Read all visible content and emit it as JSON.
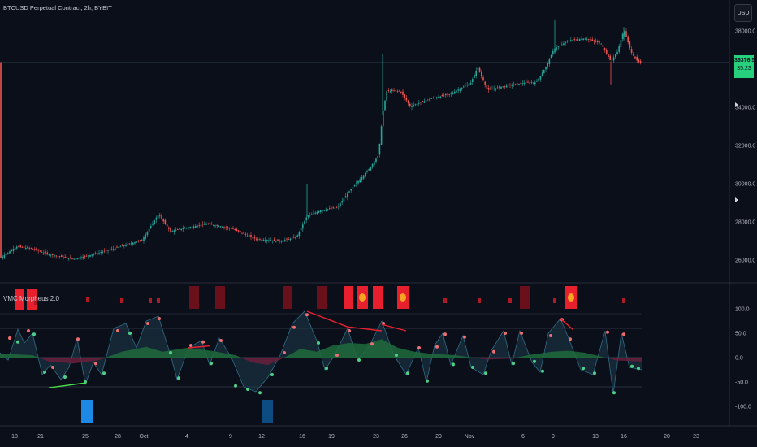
{
  "header": {
    "symbol": "BTCUSD Perpetual Contract, 2h, BYBIT",
    "currency": "USD"
  },
  "price_axis": {
    "ticks": [
      "38000.0",
      "34000.0",
      "32000.0",
      "30000.0",
      "28000.0",
      "26000.0"
    ],
    "current_price": "36376.5",
    "countdown": "35:23"
  },
  "indicator": {
    "name": "VMC Morpheus 2.0",
    "ticks": [
      "100.0",
      "50.0",
      "0.0",
      "-50.0",
      "-100.0"
    ]
  },
  "time_axis": {
    "labels": [
      "18",
      "21",
      "25",
      "28",
      "Oct",
      "4",
      "9",
      "12",
      "16",
      "19",
      "23",
      "26",
      "29",
      "Nov",
      "6",
      "9",
      "13",
      "16",
      "20",
      "23"
    ]
  },
  "colors": {
    "background": "#0b0f1a",
    "up_candle": "#26a69a",
    "down_candle": "#ef5350",
    "price_badge": "#26d07c",
    "wave_fill": "#1f3a4a",
    "green_area": "#1e6b3c",
    "red_area": "#6b1e3c",
    "signal_red": "#e8202e",
    "signal_dark_red": "#6a101a",
    "signal_orange": "#f6a623",
    "buy_blue": "#1e88e5"
  }
}
